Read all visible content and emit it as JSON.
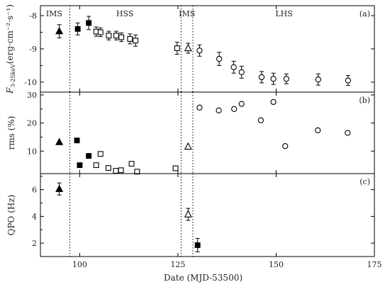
{
  "chart_data": {
    "type": "scatter",
    "shared_x": {
      "label": "Date (MJD-53500)",
      "lim": [
        90,
        175
      ],
      "ticks": [
        100,
        125,
        150,
        175
      ]
    },
    "boundaries": [
      97.5,
      125.8,
      128.8
    ],
    "panels": [
      {
        "id": "a",
        "panel_label": "(a)",
        "ylabel_main": "F",
        "ylabel_sub": "3-25keV",
        "ylabel_unit": "(erg·cm⁻²·s⁻¹)",
        "ylim": [
          -10.3,
          -7.7
        ],
        "ticks": [
          -8,
          -9,
          -10
        ],
        "regions": [
          {
            "label": "IMS",
            "x": 93.5
          },
          {
            "label": "HSS",
            "x": 111.5
          },
          {
            "label": "IMS",
            "x": 127.3
          },
          {
            "label": "LHS",
            "x": 152
          }
        ],
        "series": [
          {
            "marker": "triangle-filled",
            "points": [
              {
                "x": 94.8,
                "y": -8.47,
                "err": 0.2
              }
            ]
          },
          {
            "marker": "square-filled",
            "points": [
              {
                "x": 99.5,
                "y": -8.4,
                "err": 0.18
              },
              {
                "x": 102.3,
                "y": -8.22,
                "err": 0.2
              }
            ]
          },
          {
            "marker": "square-open",
            "points": [
              {
                "x": 104.2,
                "y": -8.48,
                "err": 0.14
              },
              {
                "x": 105.3,
                "y": -8.5,
                "err": 0.13
              },
              {
                "x": 107.4,
                "y": -8.6,
                "err": 0.13
              },
              {
                "x": 109.3,
                "y": -8.6,
                "err": 0.13
              },
              {
                "x": 110.6,
                "y": -8.65,
                "err": 0.13
              },
              {
                "x": 112.8,
                "y": -8.7,
                "err": 0.15
              },
              {
                "x": 114.2,
                "y": -8.75,
                "err": 0.17
              },
              {
                "x": 124.8,
                "y": -8.98,
                "err": 0.18
              }
            ]
          },
          {
            "marker": "triangle-open",
            "points": [
              {
                "x": 127.6,
                "y": -8.98,
                "err": 0.15
              }
            ]
          },
          {
            "marker": "circle-open",
            "points": [
              {
                "x": 130.5,
                "y": -9.05,
                "err": 0.17
              },
              {
                "x": 135.5,
                "y": -9.3,
                "err": 0.2
              },
              {
                "x": 139.2,
                "y": -9.55,
                "err": 0.18
              },
              {
                "x": 141.2,
                "y": -9.7,
                "err": 0.18
              },
              {
                "x": 146.3,
                "y": -9.85,
                "err": 0.17
              },
              {
                "x": 149.3,
                "y": -9.9,
                "err": 0.17
              },
              {
                "x": 152.6,
                "y": -9.9,
                "err": 0.15
              },
              {
                "x": 160.7,
                "y": -9.92,
                "err": 0.17
              },
              {
                "x": 168.3,
                "y": -9.95,
                "err": 0.15
              }
            ]
          }
        ]
      },
      {
        "id": "b",
        "panel_label": "(b)",
        "ylabel": "rms (%)",
        "ylim": [
          2,
          31
        ],
        "ticks": [
          10,
          20,
          30
        ],
        "series": [
          {
            "marker": "triangle-filled",
            "points": [
              {
                "x": 94.8,
                "y": 13.2
              }
            ]
          },
          {
            "marker": "square-filled",
            "points": [
              {
                "x": 99.3,
                "y": 13.8
              },
              {
                "x": 100.0,
                "y": 5.0
              },
              {
                "x": 102.3,
                "y": 8.3
              }
            ]
          },
          {
            "marker": "square-open",
            "points": [
              {
                "x": 104.2,
                "y": 5.0
              },
              {
                "x": 105.3,
                "y": 9.0
              },
              {
                "x": 107.3,
                "y": 4.0
              },
              {
                "x": 109.2,
                "y": 3.0
              },
              {
                "x": 110.5,
                "y": 3.2
              },
              {
                "x": 113.2,
                "y": 5.5
              },
              {
                "x": 114.6,
                "y": 2.7
              },
              {
                "x": 124.4,
                "y": 3.9
              }
            ]
          },
          {
            "marker": "triangle-open",
            "points": [
              {
                "x": 127.6,
                "y": 11.6
              }
            ]
          },
          {
            "marker": "circle-open",
            "points": [
              {
                "x": 130.5,
                "y": 25.5
              },
              {
                "x": 135.4,
                "y": 24.5
              },
              {
                "x": 139.3,
                "y": 25.0
              },
              {
                "x": 141.2,
                "y": 26.8
              },
              {
                "x": 146.1,
                "y": 21.0
              },
              {
                "x": 149.3,
                "y": 27.5
              },
              {
                "x": 152.3,
                "y": 11.8
              },
              {
                "x": 160.6,
                "y": 17.4
              },
              {
                "x": 168.2,
                "y": 16.5
              }
            ]
          }
        ]
      },
      {
        "id": "c",
        "panel_label": "(c)",
        "ylabel": "QPO (Hz)",
        "ylim": [
          1,
          7.2
        ],
        "ticks": [
          2,
          4,
          6
        ],
        "series": [
          {
            "marker": "triangle-filled",
            "points": [
              {
                "x": 94.8,
                "y": 6.05,
                "err": 0.45
              }
            ]
          },
          {
            "marker": "triangle-open",
            "points": [
              {
                "x": 127.6,
                "y": 4.15,
                "err": 0.45
              }
            ]
          },
          {
            "marker": "square-filled",
            "points": [
              {
                "x": 130.0,
                "y": 1.85,
                "err": 0.5
              }
            ]
          }
        ]
      }
    ]
  }
}
